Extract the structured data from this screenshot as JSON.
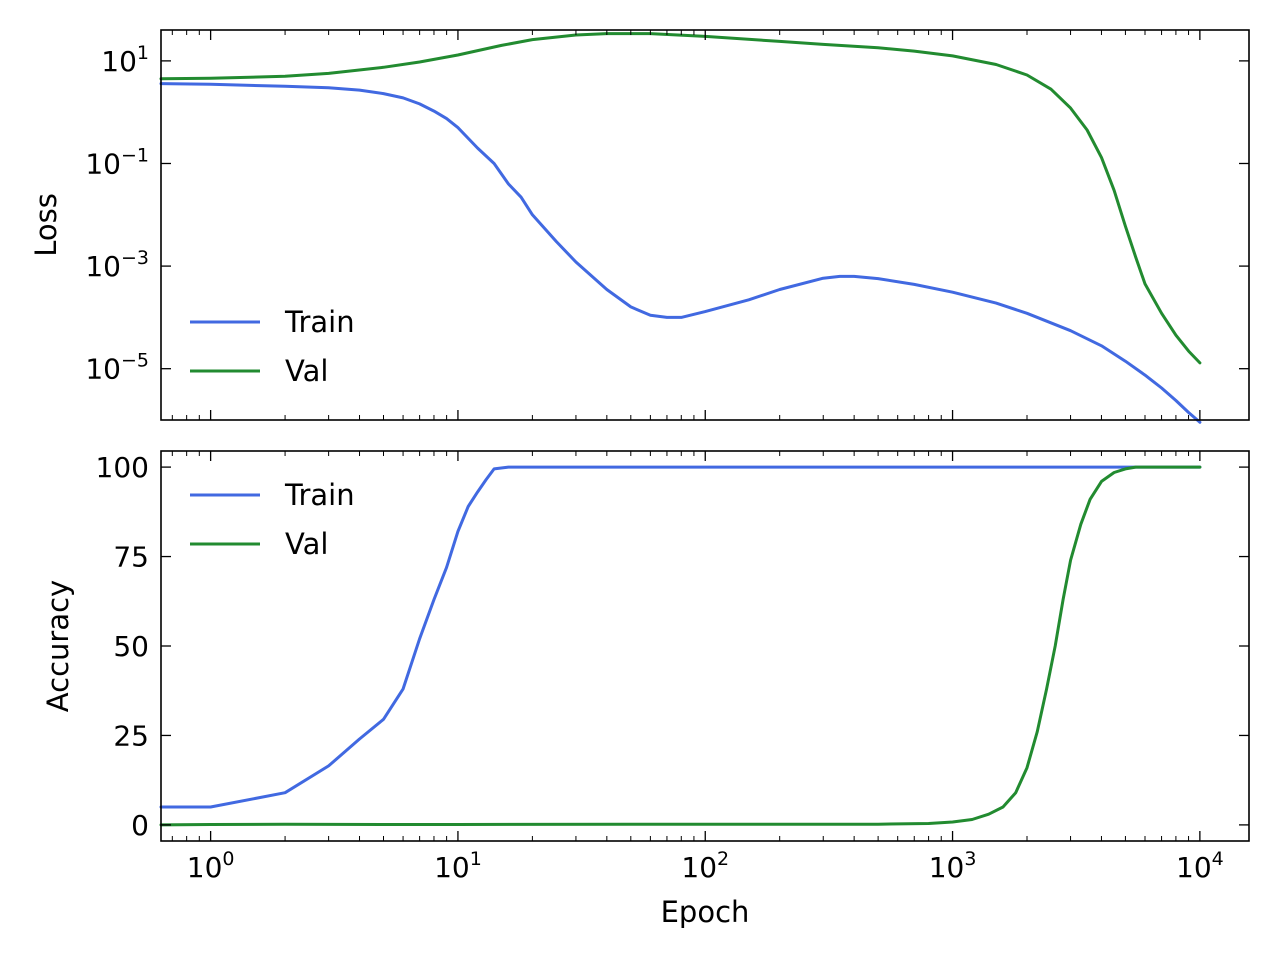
{
  "chart_data": [
    {
      "type": "line",
      "ylabel": "Loss",
      "xscale": "log",
      "yscale": "log",
      "xlim": [
        0.63,
        15800
      ],
      "ylim": [
        1e-06,
        40
      ],
      "yticks": [
        {
          "base": "10",
          "exp": "1"
        },
        {
          "base": "10",
          "exp": "−1"
        },
        {
          "base": "10",
          "exp": "−3"
        },
        {
          "base": "10",
          "exp": "−5"
        }
      ],
      "legend": {
        "placement": "lower-left"
      },
      "series": [
        {
          "name": "Train",
          "color": "#4169e1",
          "x": [
            0.63,
            1,
            2,
            3,
            4,
            5,
            6,
            7,
            8,
            9,
            10,
            12,
            14,
            16,
            18,
            20,
            25,
            30,
            40,
            50,
            60,
            70,
            80,
            100,
            150,
            200,
            300,
            350,
            400,
            500,
            700,
            1000,
            1500,
            2000,
            3000,
            4000,
            5000,
            6000,
            7000,
            8000,
            9000,
            10000
          ],
          "y": [
            3.6,
            3.5,
            3.2,
            3.0,
            2.7,
            2.3,
            1.9,
            1.45,
            1.05,
            0.75,
            0.5,
            0.2,
            0.1,
            0.04,
            0.022,
            0.01,
            0.003,
            0.0012,
            0.00035,
            0.00016,
            0.00011,
            0.0001,
            0.0001,
            0.00013,
            0.00022,
            0.00035,
            0.00058,
            0.00063,
            0.00063,
            0.00057,
            0.00044,
            0.00031,
            0.00019,
            0.00012,
            5.5e-05,
            2.8e-05,
            1.4e-05,
            7.5e-06,
            4.2e-06,
            2.4e-06,
            1.4e-06,
            9e-07
          ]
        },
        {
          "name": "Val",
          "color": "#228b30",
          "x": [
            0.63,
            1,
            2,
            3,
            5,
            7,
            10,
            15,
            20,
            30,
            40,
            60,
            100,
            200,
            300,
            500,
            700,
            1000,
            1500,
            2000,
            2500,
            3000,
            3500,
            4000,
            4500,
            5000,
            5500,
            6000,
            7000,
            8000,
            9000,
            10000
          ],
          "y": [
            4.5,
            4.6,
            5.0,
            5.7,
            7.5,
            9.5,
            13,
            20,
            26,
            32,
            34,
            34,
            30,
            24,
            21,
            18,
            15.5,
            12.5,
            8.5,
            5.3,
            2.8,
            1.2,
            0.45,
            0.13,
            0.03,
            0.006,
            0.0015,
            0.00045,
            0.00012,
            4.5e-05,
            2.2e-05,
            1.3e-05
          ]
        }
      ]
    },
    {
      "type": "line",
      "xlabel": "Epoch",
      "ylabel": "Accuracy",
      "xscale": "log",
      "xlim": [
        0.63,
        15800
      ],
      "ylim": [
        -4.5,
        104.5
      ],
      "yticks": [
        0,
        25,
        50,
        75,
        100
      ],
      "xticks": [
        {
          "base": "10",
          "exp": "0"
        },
        {
          "base": "10",
          "exp": "1"
        },
        {
          "base": "10",
          "exp": "2"
        },
        {
          "base": "10",
          "exp": "3"
        },
        {
          "base": "10",
          "exp": "4"
        }
      ],
      "legend": {
        "placement": "upper-left"
      },
      "series": [
        {
          "name": "Train",
          "color": "#4169e1",
          "x": [
            0.63,
            1,
            2,
            3,
            4,
            5,
            6,
            7,
            8,
            9,
            10,
            11,
            12,
            13,
            14,
            16,
            20,
            50,
            100,
            1000,
            10000
          ],
          "y": [
            5,
            5,
            9,
            16.5,
            24,
            29.5,
            38,
            52,
            63,
            72,
            82,
            89,
            93,
            96.5,
            99.5,
            100,
            100,
            100,
            100,
            100,
            100
          ]
        },
        {
          "name": "Val",
          "color": "#228b30",
          "x": [
            0.63,
            1,
            2,
            5,
            10,
            50,
            100,
            500,
            800,
            1000,
            1200,
            1400,
            1600,
            1800,
            2000,
            2200,
            2400,
            2600,
            2800,
            3000,
            3300,
            3600,
            4000,
            4500,
            5000,
            5500,
            6000,
            8000,
            10000
          ],
          "y": [
            0,
            0.1,
            0.2,
            0.1,
            0.1,
            0.2,
            0.2,
            0.2,
            0.4,
            0.8,
            1.5,
            3,
            5,
            9,
            16,
            26,
            38,
            50,
            63,
            74,
            84,
            91,
            96,
            98.5,
            99.5,
            100,
            100,
            100,
            100
          ]
        }
      ]
    }
  ]
}
